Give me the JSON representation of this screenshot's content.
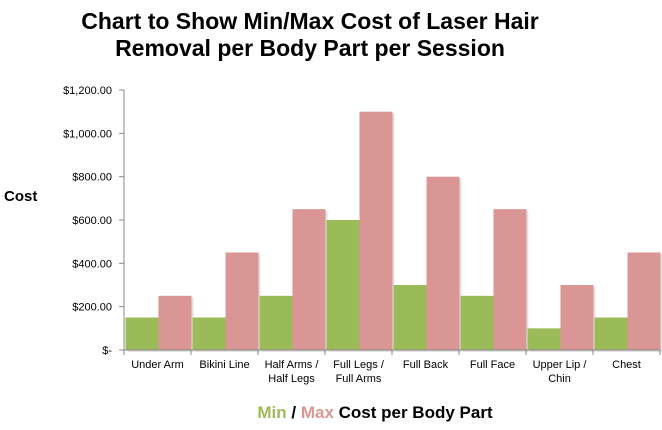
{
  "chart_data": {
    "type": "bar",
    "title": [
      "Chart to Show Min/Max Cost of Laser Hair",
      "Removal per Body Part per Session"
    ],
    "ylabel": "Cost",
    "xlabel": {
      "min_word": "Min",
      "separator": " / ",
      "max_word": "Max",
      "rest": " Cost per Body Part"
    },
    "categories": [
      [
        "Under Arm"
      ],
      [
        "Bikini Line"
      ],
      [
        "Half Arms /",
        "Half Legs"
      ],
      [
        "Full Legs /",
        "Full Arms"
      ],
      [
        "Full Back"
      ],
      [
        "Full Face"
      ],
      [
        "Upper Lip /",
        "Chin"
      ],
      [
        "Chest"
      ]
    ],
    "series": [
      {
        "values": [
          150,
          150,
          250,
          600,
          300,
          250,
          100,
          150
        ],
        "color": "#9BBB59"
      },
      {
        "values": [
          250,
          450,
          650,
          1100,
          800,
          650,
          300,
          450
        ],
        "color": "#D99694"
      }
    ],
    "ylim": [
      0,
      1200
    ],
    "yticks": [
      0,
      200,
      400,
      600,
      800,
      1000,
      1200
    ],
    "ytick_labels": [
      "$-",
      "$200.00",
      "$400.00",
      "$600.00",
      "$800.00",
      "$1,000.00",
      "$1,200.00"
    ],
    "grid": false,
    "legend": "none"
  }
}
